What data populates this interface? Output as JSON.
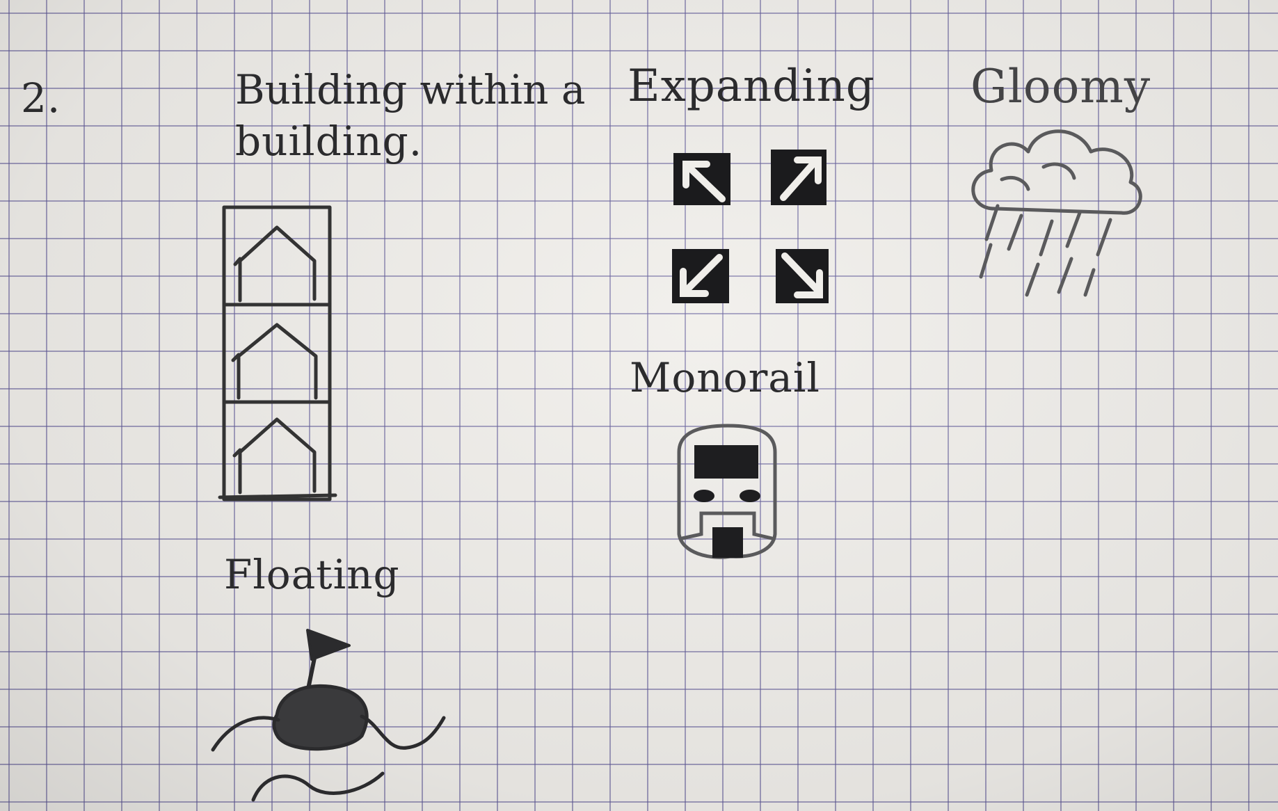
{
  "paper": {
    "grid_color": "#5e5896",
    "ink_color": "#2b2b2d"
  },
  "sketch": {
    "number": "2.",
    "labels": {
      "building_line1": "Building within a",
      "building_line2": "building.",
      "expanding": "Expanding",
      "gloomy": "Gloomy",
      "monorail": "Monorail",
      "floating": "Floating"
    },
    "icons": {
      "building": "building-within-building-icon",
      "expanding": "expand-arrows-icon",
      "gloomy": "rain-cloud-icon",
      "monorail": "monorail-train-icon",
      "floating": "floating-island-icon"
    }
  }
}
